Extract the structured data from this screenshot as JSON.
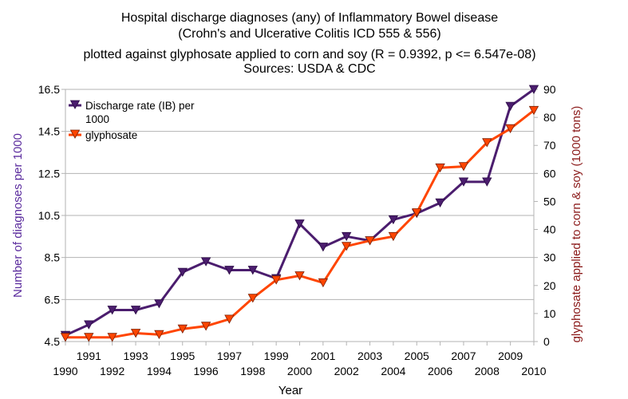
{
  "chart_data": {
    "type": "line",
    "title": "Hospital discharge diagnoses (any) of Inflammatory Bowel disease",
    "title_line2": "(Crohn's and Ulcerative Colitis  ICD 555 & 556)",
    "subtitle": "plotted against glyphosate applied to corn and soy (R = 0.9392, p <= 6.547e-08)",
    "sources": "Sources: USDA & CDC",
    "xlabel": "Year",
    "ylabel_left": "Number of diagnoses per 1000",
    "ylabel_right": "glyphosate applied to corn & soy (1000 tons)",
    "x": [
      1990,
      1991,
      1992,
      1993,
      1994,
      1995,
      1996,
      1997,
      1998,
      1999,
      2000,
      2001,
      2002,
      2003,
      2004,
      2005,
      2006,
      2007,
      2008,
      2009,
      2010
    ],
    "x_tick_labels_bottom": [
      "1990",
      "1992",
      "1994",
      "1996",
      "1998",
      "2000",
      "2002",
      "2004",
      "2006",
      "2008",
      "2010"
    ],
    "x_tick_labels_top": [
      "1991",
      "1993",
      "1995",
      "1997",
      "1999",
      "2001",
      "2003",
      "2005",
      "2007",
      "2009"
    ],
    "y_left_ticks": [
      "4.5",
      "6.5",
      "8.5",
      "10.5",
      "12.5",
      "14.5",
      "16.5"
    ],
    "y_left_lim": [
      4.5,
      16.5
    ],
    "y_right_ticks": [
      "0",
      "10",
      "20",
      "30",
      "40",
      "50",
      "60",
      "70",
      "80",
      "90"
    ],
    "y_right_lim": [
      0,
      90
    ],
    "legend_position": "top-left",
    "grid": "horizontal",
    "series": [
      {
        "name": "Discharge rate (IB) per 1000",
        "legend_line1": "Discharge rate (IB) per",
        "legend_line2": "1000",
        "axis": "left",
        "color": "#4b1d6e",
        "values": [
          4.8,
          5.3,
          6.0,
          6.0,
          6.3,
          7.8,
          8.3,
          7.9,
          7.9,
          7.5,
          10.1,
          9.0,
          9.5,
          9.3,
          10.3,
          10.6,
          11.1,
          12.1,
          12.1,
          15.7,
          16.5
        ]
      },
      {
        "name": "glyphosate",
        "axis": "right",
        "color": "#ff4500",
        "values": [
          1.5,
          1.5,
          1.5,
          3.0,
          2.5,
          4.5,
          5.5,
          8.0,
          15.5,
          22.0,
          23.5,
          21.0,
          34.0,
          36.0,
          37.5,
          46.0,
          62.0,
          62.5,
          71.0,
          76.0,
          82.5
        ]
      }
    ]
  }
}
